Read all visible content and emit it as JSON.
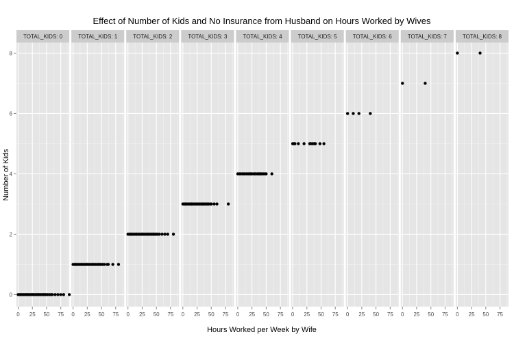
{
  "chart_data": {
    "type": "scatter",
    "title": "Effect of Number of Kids and No Insurance from Husband on Hours Worked by Wives",
    "xlabel": "Hours Worked per Week by Wife",
    "ylabel": "Number of Kids",
    "xlim": [
      -3,
      90
    ],
    "ylim": [
      -0.4,
      8.35
    ],
    "x_ticks": [
      0,
      25,
      50,
      75
    ],
    "y_ticks": [
      0,
      2,
      4,
      6,
      8
    ],
    "grid": true,
    "facet_labels": [
      "TOTAL_KIDS: 0",
      "TOTAL_KIDS: 1",
      "TOTAL_KIDS: 2",
      "TOTAL_KIDS: 3",
      "TOTAL_KIDS: 4",
      "TOTAL_KIDS: 5",
      "TOTAL_KIDS: 6",
      "TOTAL_KIDS: 7",
      "TOTAL_KIDS: 8"
    ],
    "facets": [
      {
        "y": 0,
        "x": [
          0,
          2,
          4,
          5,
          6,
          8,
          10,
          12,
          14,
          15,
          16,
          18,
          20,
          22,
          24,
          25,
          26,
          28,
          30,
          32,
          34,
          35,
          36,
          38,
          40,
          42,
          44,
          45,
          46,
          48,
          50,
          52,
          55,
          58,
          60,
          65,
          70,
          75,
          80,
          90
        ]
      },
      {
        "y": 1,
        "x": [
          0,
          2,
          4,
          5,
          6,
          8,
          10,
          12,
          14,
          15,
          16,
          18,
          20,
          22,
          24,
          25,
          26,
          28,
          30,
          32,
          34,
          35,
          36,
          38,
          40,
          42,
          44,
          45,
          46,
          48,
          50,
          52,
          55,
          60,
          62,
          70,
          80
        ]
      },
      {
        "y": 2,
        "x": [
          0,
          2,
          4,
          5,
          6,
          8,
          10,
          12,
          14,
          15,
          16,
          18,
          20,
          22,
          24,
          25,
          26,
          28,
          30,
          32,
          34,
          35,
          36,
          38,
          40,
          42,
          44,
          45,
          46,
          48,
          50,
          52,
          55,
          60,
          65,
          70,
          80
        ]
      },
      {
        "y": 3,
        "x": [
          0,
          2,
          4,
          5,
          6,
          8,
          10,
          12,
          14,
          15,
          16,
          18,
          20,
          22,
          24,
          25,
          26,
          28,
          30,
          32,
          34,
          35,
          36,
          38,
          40,
          42,
          44,
          45,
          48,
          50,
          55,
          60,
          80
        ]
      },
      {
        "y": 4,
        "x": [
          0,
          3,
          5,
          8,
          10,
          12,
          15,
          18,
          20,
          22,
          24,
          25,
          28,
          30,
          32,
          35,
          36,
          38,
          40,
          42,
          45,
          48,
          50,
          60
        ]
      },
      {
        "y": 5,
        "x": [
          0,
          2,
          4,
          10,
          20,
          30,
          32,
          35,
          38,
          40,
          48,
          55
        ]
      },
      {
        "y": 6,
        "x": [
          0,
          10,
          20,
          40
        ]
      },
      {
        "y": 7,
        "x": [
          0,
          40
        ]
      },
      {
        "y": 8,
        "x": [
          0,
          40
        ]
      }
    ]
  }
}
